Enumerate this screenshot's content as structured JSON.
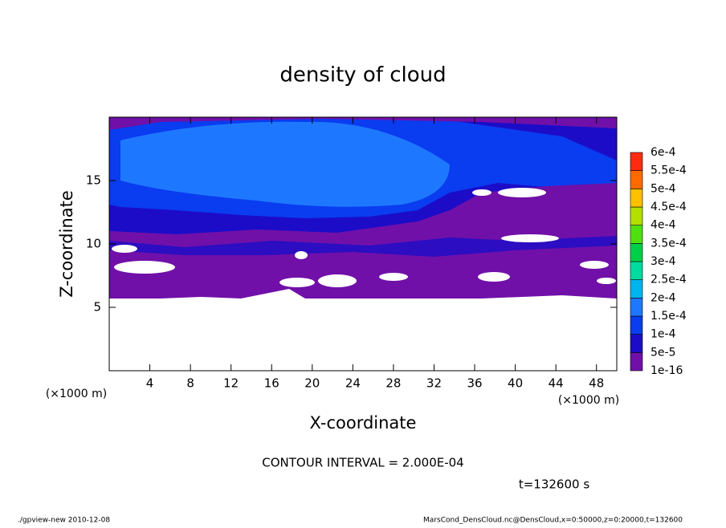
{
  "chart_data": {
    "type": "contour",
    "title": "density of cloud",
    "xlabel": "X-coordinate",
    "ylabel": "Z-coordinate",
    "xunit": "(×1000 m)",
    "yunit": "(×1000 m)",
    "xlim": [
      0,
      50
    ],
    "xticks": [
      4,
      8,
      12,
      16,
      20,
      24,
      28,
      32,
      36,
      40,
      44,
      48
    ],
    "ylim": [
      0,
      20
    ],
    "yticks": [
      5,
      10,
      15
    ],
    "colorbar": {
      "levels": [
        {
          "value": 1e-16,
          "label": "1e-16"
        },
        {
          "value": 5e-05,
          "label": "5e-5"
        },
        {
          "value": 0.0001,
          "label": "1e-4"
        },
        {
          "value": 0.00015,
          "label": "1.5e-4"
        },
        {
          "value": 0.0002,
          "label": "2e-4"
        },
        {
          "value": 0.00025,
          "label": "2.5e-4"
        },
        {
          "value": 0.0003,
          "label": "3e-4"
        },
        {
          "value": 0.00035,
          "label": "3.5e-4"
        },
        {
          "value": 0.0004,
          "label": "4e-4"
        },
        {
          "value": 0.00045,
          "label": "4.5e-4"
        },
        {
          "value": 0.0005,
          "label": "5e-4"
        },
        {
          "value": 0.00055,
          "label": "5.5e-4"
        },
        {
          "value": 0.0006,
          "label": "6e-4"
        }
      ],
      "colors": [
        "#7010a8",
        "#1c0cc8",
        "#0a3cf0",
        "#1e78ff",
        "#00b4f0",
        "#00dca0",
        "#00d048",
        "#50e010",
        "#b4e000",
        "#ffc000",
        "#ff6a00",
        "#ff2a10",
        "#ff8c8c"
      ]
    },
    "contour_interval": "CONTOUR INTERVAL = 2.000E-04",
    "time": "t=132600 s",
    "footer_left": "./gpview-new  2010-12-08",
    "footer_right": "MarsCond_DensCloud.nc@DensCloud,x=0:50000,z=0:20000,t=132600"
  }
}
